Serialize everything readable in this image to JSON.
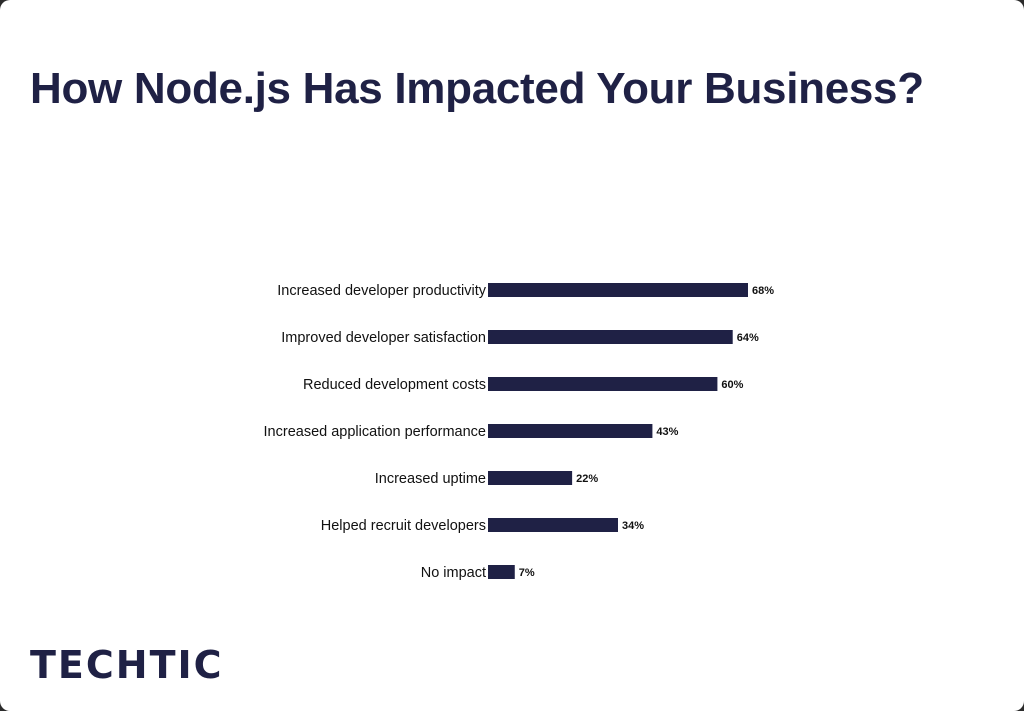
{
  "title": "How Node.js Has Impacted Your Business?",
  "logo_text": "TECHTIC",
  "chart_data": {
    "type": "bar",
    "orientation": "horizontal",
    "title": "How Node.js Has Impacted Your Business?",
    "categories": [
      "Increased developer productivity",
      "Improved developer satisfaction",
      "Reduced development costs",
      "Increased application performance",
      "Increased uptime",
      "Helped recruit developers",
      "No impact"
    ],
    "values": [
      68,
      64,
      60,
      43,
      22,
      34,
      7
    ],
    "value_labels": [
      "68%",
      "64%",
      "60%",
      "43%",
      "22%",
      "34%",
      "7%"
    ],
    "unit": "%",
    "xlim": [
      0,
      100
    ],
    "grid": false,
    "bar_color": "#1f2145"
  }
}
